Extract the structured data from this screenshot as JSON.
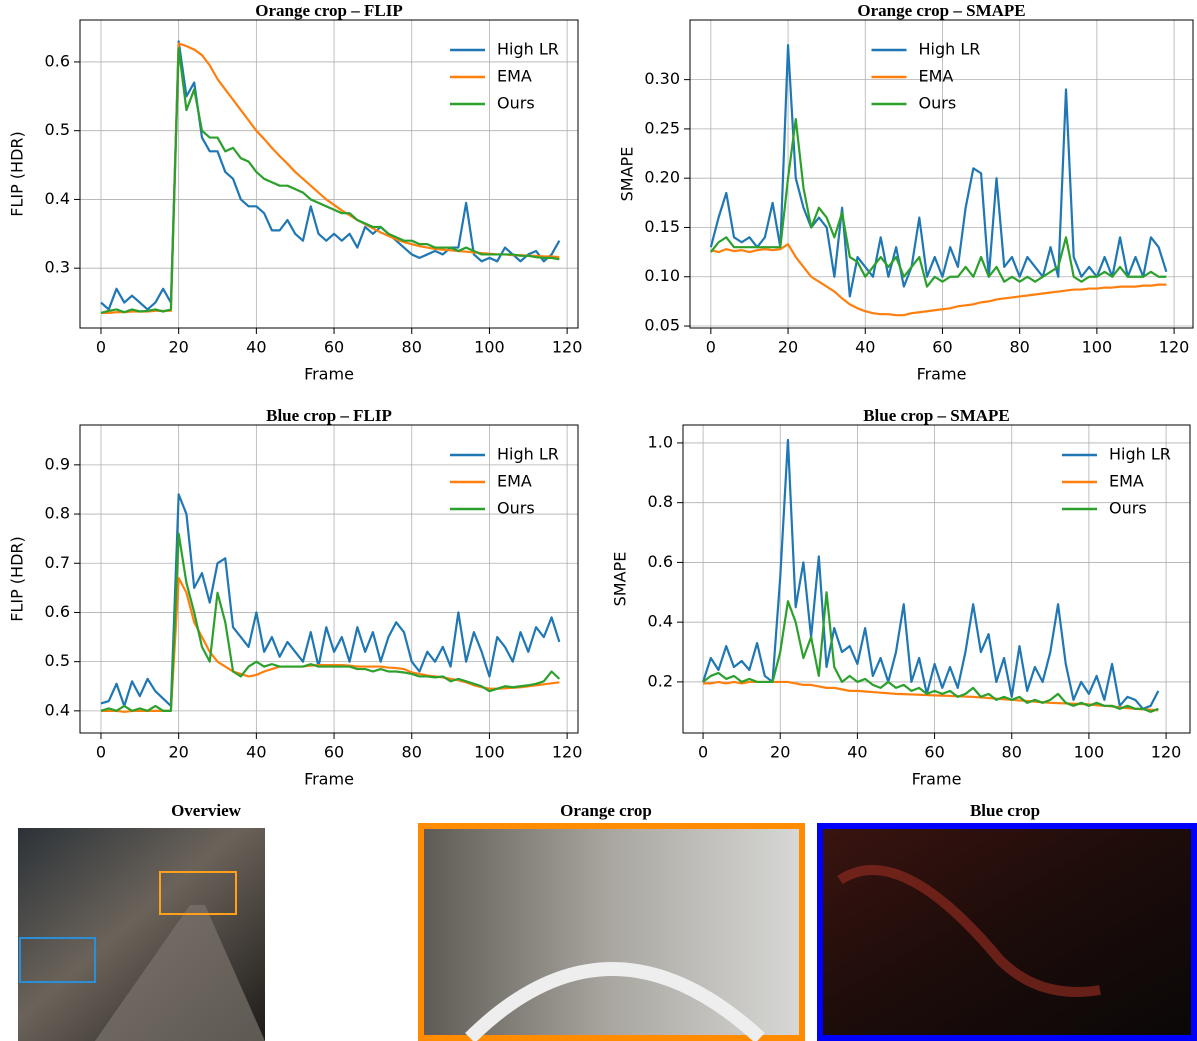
{
  "chart_data": [
    {
      "type": "line",
      "title": "Orange crop – FLIP",
      "xlabel": "Frame",
      "ylabel": "FLIP (HDR)",
      "x": [
        0,
        2,
        4,
        6,
        8,
        10,
        12,
        14,
        16,
        18,
        20,
        22,
        24,
        26,
        28,
        30,
        32,
        34,
        36,
        38,
        40,
        42,
        44,
        46,
        48,
        50,
        52,
        54,
        56,
        58,
        60,
        62,
        64,
        66,
        68,
        70,
        72,
        74,
        76,
        78,
        80,
        82,
        84,
        86,
        88,
        90,
        92,
        94,
        96,
        98,
        100,
        102,
        104,
        106,
        108,
        110,
        112,
        114,
        116,
        118
      ],
      "xlim": [
        -5.4,
        122.8
      ],
      "xticks": [
        0,
        20,
        40,
        60,
        80,
        100,
        120
      ],
      "ylim": [
        0.213,
        0.661
      ],
      "yticks": [
        0.3,
        0.4,
        0.5,
        0.6
      ],
      "grid": true,
      "legend": "upper right",
      "series": [
        {
          "name": "High LR",
          "color": "#1f77b4",
          "values": [
            0.25,
            0.24,
            0.27,
            0.25,
            0.26,
            0.25,
            0.24,
            0.25,
            0.27,
            0.25,
            0.63,
            0.55,
            0.57,
            0.49,
            0.47,
            0.47,
            0.44,
            0.43,
            0.4,
            0.39,
            0.39,
            0.38,
            0.355,
            0.355,
            0.37,
            0.35,
            0.34,
            0.39,
            0.35,
            0.34,
            0.35,
            0.34,
            0.35,
            0.33,
            0.36,
            0.35,
            0.36,
            0.35,
            0.34,
            0.33,
            0.32,
            0.315,
            0.32,
            0.325,
            0.32,
            0.33,
            0.33,
            0.395,
            0.32,
            0.31,
            0.315,
            0.31,
            0.33,
            0.32,
            0.31,
            0.32,
            0.325,
            0.31,
            0.32,
            0.34
          ]
        },
        {
          "name": "EMA",
          "color": "#ff7f0e",
          "values": [
            0.235,
            0.235,
            0.236,
            0.236,
            0.237,
            0.237,
            0.237,
            0.238,
            0.238,
            0.238,
            0.627,
            0.623,
            0.618,
            0.61,
            0.595,
            0.575,
            0.56,
            0.545,
            0.53,
            0.515,
            0.5,
            0.488,
            0.475,
            0.463,
            0.452,
            0.44,
            0.43,
            0.42,
            0.41,
            0.4,
            0.392,
            0.384,
            0.377,
            0.37,
            0.364,
            0.358,
            0.352,
            0.347,
            0.342,
            0.338,
            0.335,
            0.332,
            0.33,
            0.328,
            0.327,
            0.326,
            0.325,
            0.324,
            0.323,
            0.322,
            0.321,
            0.32,
            0.32,
            0.319,
            0.319,
            0.318,
            0.318,
            0.317,
            0.317,
            0.316
          ]
        },
        {
          "name": "Ours",
          "color": "#2ca02c",
          "values": [
            0.235,
            0.238,
            0.24,
            0.236,
            0.24,
            0.237,
            0.238,
            0.24,
            0.237,
            0.24,
            0.62,
            0.53,
            0.56,
            0.5,
            0.49,
            0.49,
            0.47,
            0.475,
            0.46,
            0.455,
            0.44,
            0.43,
            0.425,
            0.42,
            0.42,
            0.415,
            0.41,
            0.4,
            0.395,
            0.39,
            0.385,
            0.38,
            0.38,
            0.37,
            0.365,
            0.36,
            0.36,
            0.35,
            0.345,
            0.34,
            0.34,
            0.335,
            0.335,
            0.33,
            0.33,
            0.33,
            0.325,
            0.33,
            0.325,
            0.32,
            0.32,
            0.32,
            0.32,
            0.32,
            0.318,
            0.318,
            0.316,
            0.315,
            0.315,
            0.313
          ]
        }
      ]
    },
    {
      "type": "line",
      "title": "Orange crop – SMAPE",
      "xlabel": "Frame",
      "ylabel": "SMAPE",
      "x": [
        0,
        2,
        4,
        6,
        8,
        10,
        12,
        14,
        16,
        18,
        20,
        22,
        24,
        26,
        28,
        30,
        32,
        34,
        36,
        38,
        40,
        42,
        44,
        46,
        48,
        50,
        52,
        54,
        56,
        58,
        60,
        62,
        64,
        66,
        68,
        70,
        72,
        74,
        76,
        78,
        80,
        82,
        84,
        86,
        88,
        90,
        92,
        94,
        96,
        98,
        100,
        102,
        104,
        106,
        108,
        110,
        112,
        114,
        116,
        118
      ],
      "xlim": [
        -5.4,
        124.9
      ],
      "xticks": [
        0,
        20,
        40,
        60,
        80,
        100,
        120
      ],
      "ylim": [
        0.048,
        0.3605
      ],
      "yticks": [
        0.05,
        {
          "value": 0.1,
          "label": "0.10"
        },
        0.15,
        {
          "value": 0.2,
          "label": "0.20"
        },
        0.25,
        {
          "value": 0.3,
          "label": "0.30"
        }
      ],
      "grid": true,
      "legend": "upper center",
      "series": [
        {
          "name": "High LR",
          "color": "#1f77b4",
          "values": [
            0.13,
            0.16,
            0.185,
            0.14,
            0.135,
            0.14,
            0.13,
            0.14,
            0.175,
            0.13,
            0.335,
            0.2,
            0.17,
            0.15,
            0.16,
            0.15,
            0.1,
            0.17,
            0.08,
            0.12,
            0.11,
            0.1,
            0.14,
            0.1,
            0.13,
            0.09,
            0.11,
            0.16,
            0.1,
            0.12,
            0.1,
            0.13,
            0.11,
            0.17,
            0.21,
            0.205,
            0.1,
            0.2,
            0.11,
            0.12,
            0.1,
            0.12,
            0.11,
            0.1,
            0.13,
            0.1,
            0.29,
            0.12,
            0.1,
            0.11,
            0.1,
            0.12,
            0.1,
            0.14,
            0.1,
            0.12,
            0.1,
            0.14,
            0.13,
            0.105
          ]
        },
        {
          "name": "EMA",
          "color": "#ff7f0e",
          "values": [
            0.127,
            0.125,
            0.128,
            0.126,
            0.127,
            0.125,
            0.127,
            0.128,
            0.127,
            0.128,
            0.133,
            0.12,
            0.11,
            0.1,
            0.095,
            0.09,
            0.085,
            0.078,
            0.072,
            0.068,
            0.065,
            0.063,
            0.062,
            0.062,
            0.061,
            0.061,
            0.063,
            0.064,
            0.065,
            0.066,
            0.067,
            0.068,
            0.07,
            0.071,
            0.072,
            0.074,
            0.075,
            0.077,
            0.078,
            0.079,
            0.08,
            0.081,
            0.082,
            0.083,
            0.084,
            0.085,
            0.086,
            0.087,
            0.087,
            0.088,
            0.088,
            0.089,
            0.089,
            0.09,
            0.09,
            0.09,
            0.091,
            0.091,
            0.092,
            0.092
          ]
        },
        {
          "name": "Ours",
          "color": "#2ca02c",
          "values": [
            0.125,
            0.135,
            0.14,
            0.13,
            0.13,
            0.13,
            0.13,
            0.13,
            0.13,
            0.13,
            0.2,
            0.26,
            0.19,
            0.15,
            0.17,
            0.16,
            0.14,
            0.165,
            0.12,
            0.115,
            0.1,
            0.11,
            0.12,
            0.11,
            0.12,
            0.1,
            0.11,
            0.12,
            0.09,
            0.1,
            0.095,
            0.1,
            0.1,
            0.11,
            0.1,
            0.12,
            0.1,
            0.11,
            0.095,
            0.1,
            0.095,
            0.1,
            0.095,
            0.1,
            0.105,
            0.11,
            0.14,
            0.1,
            0.095,
            0.1,
            0.1,
            0.105,
            0.1,
            0.11,
            0.1,
            0.1,
            0.1,
            0.105,
            0.1,
            0.1
          ]
        }
      ]
    },
    {
      "type": "line",
      "title": "Blue crop – FLIP",
      "xlabel": "Frame",
      "ylabel": "FLIP (HDR)",
      "x": [
        0,
        2,
        4,
        6,
        8,
        10,
        12,
        14,
        16,
        18,
        20,
        22,
        24,
        26,
        28,
        30,
        32,
        34,
        36,
        38,
        40,
        42,
        44,
        46,
        48,
        50,
        52,
        54,
        56,
        58,
        60,
        62,
        64,
        66,
        68,
        70,
        72,
        74,
        76,
        78,
        80,
        82,
        84,
        86,
        88,
        90,
        92,
        94,
        96,
        98,
        100,
        102,
        104,
        106,
        108,
        110,
        112,
        114,
        116,
        118
      ],
      "xlim": [
        -5.4,
        122.8
      ],
      "xticks": [
        0,
        20,
        40,
        60,
        80,
        100,
        120
      ],
      "ylim": [
        0.355,
        0.981
      ],
      "yticks": [
        0.4,
        0.5,
        0.6,
        0.7,
        0.8,
        0.9
      ],
      "grid": true,
      "legend": "upper right",
      "series": [
        {
          "name": "High LR",
          "color": "#1f77b4",
          "values": [
            0.415,
            0.42,
            0.455,
            0.41,
            0.46,
            0.43,
            0.465,
            0.44,
            0.425,
            0.41,
            0.84,
            0.8,
            0.65,
            0.68,
            0.62,
            0.7,
            0.71,
            0.57,
            0.55,
            0.53,
            0.6,
            0.52,
            0.55,
            0.51,
            0.54,
            0.52,
            0.5,
            0.56,
            0.49,
            0.57,
            0.52,
            0.55,
            0.5,
            0.57,
            0.52,
            0.56,
            0.5,
            0.55,
            0.58,
            0.56,
            0.5,
            0.48,
            0.52,
            0.5,
            0.53,
            0.49,
            0.6,
            0.5,
            0.56,
            0.52,
            0.47,
            0.55,
            0.53,
            0.5,
            0.56,
            0.52,
            0.57,
            0.55,
            0.59,
            0.54
          ]
        },
        {
          "name": "EMA",
          "color": "#ff7f0e",
          "values": [
            0.4,
            0.4,
            0.4,
            0.398,
            0.4,
            0.4,
            0.4,
            0.4,
            0.4,
            0.4,
            0.67,
            0.64,
            0.58,
            0.55,
            0.52,
            0.5,
            0.49,
            0.48,
            0.475,
            0.47,
            0.473,
            0.48,
            0.485,
            0.49,
            0.49,
            0.49,
            0.49,
            0.492,
            0.493,
            0.493,
            0.493,
            0.493,
            0.492,
            0.49,
            0.49,
            0.49,
            0.49,
            0.488,
            0.487,
            0.485,
            0.478,
            0.475,
            0.472,
            0.47,
            0.468,
            0.465,
            0.462,
            0.458,
            0.452,
            0.448,
            0.445,
            0.445,
            0.446,
            0.447,
            0.448,
            0.45,
            0.452,
            0.454,
            0.456,
            0.458
          ]
        },
        {
          "name": "Ours",
          "color": "#2ca02c",
          "values": [
            0.4,
            0.405,
            0.4,
            0.41,
            0.4,
            0.405,
            0.4,
            0.41,
            0.4,
            0.4,
            0.76,
            0.66,
            0.6,
            0.53,
            0.5,
            0.64,
            0.58,
            0.48,
            0.47,
            0.49,
            0.5,
            0.49,
            0.495,
            0.49,
            0.49,
            0.49,
            0.49,
            0.495,
            0.49,
            0.49,
            0.49,
            0.49,
            0.49,
            0.485,
            0.485,
            0.48,
            0.485,
            0.48,
            0.48,
            0.478,
            0.475,
            0.47,
            0.47,
            0.468,
            0.47,
            0.46,
            0.465,
            0.46,
            0.455,
            0.45,
            0.44,
            0.445,
            0.45,
            0.448,
            0.45,
            0.452,
            0.455,
            0.46,
            0.48,
            0.465
          ]
        }
      ]
    },
    {
      "type": "line",
      "title": "Blue crop – SMAPE",
      "xlabel": "Frame",
      "ylabel": "SMAPE",
      "x": [
        0,
        2,
        4,
        6,
        8,
        10,
        12,
        14,
        16,
        18,
        20,
        22,
        24,
        26,
        28,
        30,
        32,
        34,
        36,
        38,
        40,
        42,
        44,
        46,
        48,
        50,
        52,
        54,
        56,
        58,
        60,
        62,
        64,
        66,
        68,
        70,
        72,
        74,
        76,
        78,
        80,
        82,
        84,
        86,
        88,
        90,
        92,
        94,
        96,
        98,
        100,
        102,
        104,
        106,
        108,
        110,
        112,
        114,
        116,
        118
      ],
      "xlim": [
        -5.2,
        126.2
      ],
      "xticks": [
        0,
        20,
        40,
        60,
        80,
        100,
        120
      ],
      "ylim": [
        0.029,
        1.06
      ],
      "yticks": [
        0.2,
        0.4,
        0.6,
        0.8,
        {
          "value": 1.0,
          "label": "1.0"
        }
      ],
      "grid": true,
      "legend": "upper right",
      "series": [
        {
          "name": "High LR",
          "color": "#1f77b4",
          "values": [
            0.2,
            0.28,
            0.24,
            0.32,
            0.25,
            0.27,
            0.24,
            0.33,
            0.22,
            0.2,
            0.55,
            1.01,
            0.45,
            0.6,
            0.35,
            0.62,
            0.25,
            0.38,
            0.3,
            0.32,
            0.26,
            0.38,
            0.22,
            0.28,
            0.2,
            0.3,
            0.46,
            0.2,
            0.28,
            0.16,
            0.26,
            0.18,
            0.25,
            0.18,
            0.3,
            0.46,
            0.3,
            0.36,
            0.2,
            0.28,
            0.15,
            0.32,
            0.17,
            0.25,
            0.2,
            0.3,
            0.46,
            0.26,
            0.14,
            0.2,
            0.16,
            0.22,
            0.14,
            0.26,
            0.12,
            0.15,
            0.14,
            0.11,
            0.12,
            0.17
          ]
        },
        {
          "name": "EMA",
          "color": "#ff7f0e",
          "values": [
            0.195,
            0.195,
            0.2,
            0.195,
            0.2,
            0.195,
            0.2,
            0.2,
            0.2,
            0.2,
            0.2,
            0.2,
            0.195,
            0.19,
            0.19,
            0.185,
            0.18,
            0.18,
            0.175,
            0.17,
            0.17,
            0.168,
            0.166,
            0.164,
            0.162,
            0.16,
            0.159,
            0.158,
            0.157,
            0.156,
            0.155,
            0.154,
            0.153,
            0.152,
            0.151,
            0.15,
            0.148,
            0.146,
            0.144,
            0.142,
            0.14,
            0.138,
            0.136,
            0.134,
            0.132,
            0.13,
            0.129,
            0.128,
            0.127,
            0.126,
            0.125,
            0.122,
            0.12,
            0.118,
            0.115,
            0.112,
            0.11,
            0.108,
            0.107,
            0.105
          ]
        },
        {
          "name": "Ours",
          "color": "#2ca02c",
          "values": [
            0.2,
            0.22,
            0.23,
            0.21,
            0.22,
            0.2,
            0.21,
            0.2,
            0.2,
            0.2,
            0.3,
            0.47,
            0.4,
            0.28,
            0.35,
            0.22,
            0.5,
            0.25,
            0.2,
            0.22,
            0.2,
            0.21,
            0.19,
            0.18,
            0.2,
            0.18,
            0.19,
            0.17,
            0.18,
            0.16,
            0.17,
            0.16,
            0.17,
            0.15,
            0.16,
            0.18,
            0.15,
            0.16,
            0.14,
            0.15,
            0.14,
            0.15,
            0.13,
            0.14,
            0.13,
            0.14,
            0.16,
            0.13,
            0.12,
            0.13,
            0.12,
            0.13,
            0.12,
            0.12,
            0.11,
            0.12,
            0.11,
            0.11,
            0.1,
            0.11
          ]
        }
      ]
    }
  ],
  "images": {
    "panels": [
      {
        "title": "Overview"
      },
      {
        "title": "Orange crop"
      },
      {
        "title": "Blue crop"
      }
    ]
  }
}
